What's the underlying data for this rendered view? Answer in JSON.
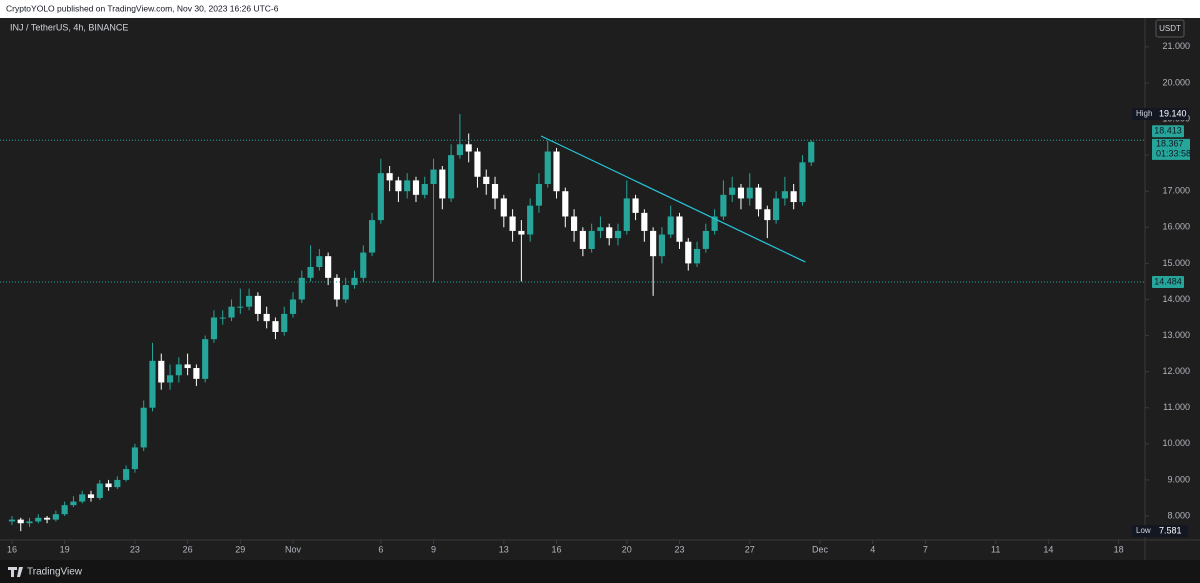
{
  "header": {
    "publisher": "CryptoYOLO published on TradingView.com, Nov 30, 2023 16:26 UTC-6"
  },
  "chart_data": {
    "type": "candlestick",
    "title": "INJ / TetherUS, 4h, BINANCE",
    "currency": "USDT",
    "x": [
      0,
      0.5,
      1,
      1.5,
      2,
      2.5,
      3,
      3.5,
      4,
      4.5,
      5,
      5.5,
      6,
      6.5,
      7,
      7.5,
      8,
      8.5,
      9,
      9.5,
      10,
      10.5,
      11,
      11.5,
      12,
      12.5,
      13,
      13.5,
      14,
      14.5,
      15,
      15.5,
      16,
      16.5,
      17,
      17.5,
      18,
      18.5,
      19,
      19.5,
      20,
      20.5,
      21,
      21.5,
      22,
      22.5,
      23,
      23.5,
      24,
      24.5,
      25,
      25.5,
      26,
      26.5,
      27,
      27.5,
      28,
      28.5,
      29,
      29.5,
      30,
      30.5,
      31,
      31.5,
      32,
      32.5,
      33,
      33.5,
      34,
      34.5,
      35,
      35.5,
      36,
      36.5,
      37,
      37.5,
      38,
      38.5,
      39,
      39.5,
      40,
      40.5,
      41,
      41.5,
      42,
      42.5,
      43,
      43.5,
      44,
      44.5,
      45,
      45.5
    ],
    "open": [
      7.85,
      7.9,
      7.8,
      7.85,
      7.95,
      7.9,
      8.05,
      8.3,
      8.4,
      8.6,
      8.5,
      8.9,
      8.8,
      9.0,
      9.3,
      9.9,
      11.0,
      12.3,
      11.7,
      11.9,
      12.2,
      12.1,
      11.8,
      12.9,
      13.5,
      13.5,
      13.8,
      13.8,
      14.1,
      13.6,
      13.4,
      13.1,
      13.6,
      14.0,
      14.6,
      14.9,
      15.2,
      14.6,
      14.0,
      14.4,
      14.6,
      15.3,
      16.2,
      17.5,
      17.3,
      17.0,
      17.3,
      16.9,
      17.2,
      17.6,
      16.8,
      18.0,
      18.3,
      18.1,
      17.4,
      17.2,
      16.8,
      16.3,
      15.9,
      15.8,
      16.6,
      17.2,
      18.1,
      17.0,
      16.3,
      15.9,
      15.4,
      15.9,
      16.0,
      15.7,
      15.9,
      16.8,
      16.4,
      15.9,
      15.2,
      15.8,
      16.3,
      15.6,
      15.0,
      15.4,
      15.9,
      16.3,
      16.9,
      17.1,
      16.8,
      17.1,
      16.5,
      16.2,
      16.8,
      17.0,
      16.7,
      17.8
    ],
    "high": [
      8.0,
      7.95,
      7.95,
      8.05,
      8.0,
      8.15,
      8.4,
      8.55,
      8.7,
      8.7,
      9.0,
      9.0,
      9.1,
      9.4,
      10.0,
      11.2,
      12.8,
      12.5,
      12.2,
      12.4,
      12.5,
      12.2,
      13.0,
      13.7,
      13.7,
      14.0,
      14.3,
      14.3,
      14.2,
      13.8,
      13.5,
      13.8,
      14.2,
      14.8,
      15.5,
      15.4,
      15.3,
      14.7,
      14.6,
      14.8,
      15.5,
      16.4,
      17.9,
      17.7,
      17.4,
      17.5,
      17.4,
      17.4,
      17.9,
      17.7,
      18.3,
      19.14,
      18.6,
      18.2,
      17.6,
      17.4,
      16.9,
      16.5,
      16.2,
      16.8,
      17.5,
      18.4,
      18.2,
      17.1,
      16.5,
      16.0,
      16.1,
      16.3,
      16.1,
      16.1,
      17.3,
      16.9,
      16.5,
      16.0,
      16.0,
      16.6,
      16.4,
      15.7,
      15.6,
      16.1,
      16.5,
      17.3,
      17.4,
      17.2,
      17.5,
      17.2,
      16.6,
      17.0,
      17.4,
      17.2,
      18.0,
      18.413
    ],
    "low": [
      7.75,
      7.581,
      7.7,
      7.8,
      7.8,
      7.85,
      8.0,
      8.25,
      8.35,
      8.4,
      8.45,
      8.7,
      8.75,
      8.95,
      9.2,
      9.8,
      10.9,
      11.5,
      11.5,
      11.7,
      11.9,
      11.6,
      11.7,
      12.8,
      13.3,
      13.4,
      13.6,
      13.7,
      13.4,
      13.2,
      12.9,
      13.0,
      13.5,
      13.9,
      14.5,
      14.8,
      14.4,
      13.8,
      13.9,
      14.3,
      14.5,
      15.2,
      16.1,
      17.0,
      16.7,
      16.8,
      16.7,
      16.8,
      14.48,
      16.5,
      16.7,
      17.9,
      17.8,
      17.1,
      16.9,
      16.5,
      16.0,
      15.6,
      14.5,
      15.6,
      16.4,
      17.1,
      16.8,
      16.0,
      15.6,
      15.2,
      15.3,
      15.7,
      15.5,
      15.5,
      15.8,
      16.2,
      15.6,
      14.1,
      15.0,
      15.7,
      15.4,
      14.8,
      14.9,
      15.3,
      15.8,
      16.2,
      16.7,
      16.5,
      16.6,
      16.3,
      15.7,
      16.1,
      16.6,
      16.5,
      16.6,
      17.7
    ],
    "close": [
      7.9,
      7.8,
      7.85,
      7.95,
      7.9,
      8.05,
      8.3,
      8.4,
      8.6,
      8.5,
      8.9,
      8.8,
      9.0,
      9.3,
      9.9,
      11.0,
      12.3,
      11.7,
      11.9,
      12.2,
      12.1,
      11.8,
      12.9,
      13.5,
      13.5,
      13.8,
      13.8,
      14.1,
      13.6,
      13.4,
      13.1,
      13.6,
      14.0,
      14.6,
      14.9,
      15.2,
      14.6,
      14.0,
      14.4,
      14.6,
      15.3,
      16.2,
      17.5,
      17.3,
      17.0,
      17.3,
      16.9,
      17.2,
      17.6,
      16.8,
      18.0,
      18.3,
      18.1,
      17.4,
      17.2,
      16.8,
      16.3,
      15.9,
      15.8,
      16.6,
      17.2,
      18.1,
      17.0,
      16.3,
      15.9,
      15.4,
      15.9,
      16.0,
      15.7,
      15.9,
      16.8,
      16.4,
      15.9,
      15.2,
      15.8,
      16.3,
      15.6,
      15.0,
      15.4,
      15.9,
      16.3,
      16.9,
      17.1,
      16.8,
      17.1,
      16.5,
      16.2,
      16.8,
      17.0,
      16.7,
      17.8,
      18.367
    ],
    "up_color": "#26a69a",
    "down_color": "#ffffff",
    "xlim": [
      -0.68,
      64.5
    ],
    "xticks": [
      {
        "value": 0,
        "label": "16"
      },
      {
        "value": 3,
        "label": "19"
      },
      {
        "value": 7,
        "label": "23"
      },
      {
        "value": 10,
        "label": "26"
      },
      {
        "value": 13,
        "label": "29"
      },
      {
        "value": 16,
        "label": "Nov"
      },
      {
        "value": 21,
        "label": "6"
      },
      {
        "value": 24,
        "label": "9"
      },
      {
        "value": 28,
        "label": "13"
      },
      {
        "value": 31,
        "label": "16"
      },
      {
        "value": 35,
        "label": "20"
      },
      {
        "value": 38,
        "label": "23"
      },
      {
        "value": 42,
        "label": "27"
      },
      {
        "value": 46,
        "label": "Dec"
      },
      {
        "value": 49,
        "label": "4"
      },
      {
        "value": 52,
        "label": "7"
      },
      {
        "value": 56,
        "label": "11"
      },
      {
        "value": 59,
        "label": "14"
      },
      {
        "value": 63,
        "label": "18"
      }
    ],
    "ylim": [
      7.335,
      21.8
    ],
    "yticks": [
      {
        "value": 8,
        "label": "8.000"
      },
      {
        "value": 9,
        "label": "9.000"
      },
      {
        "value": 10,
        "label": "10.000"
      },
      {
        "value": 11,
        "label": "11.000"
      },
      {
        "value": 12,
        "label": "12.000"
      },
      {
        "value": 13,
        "label": "13.000"
      },
      {
        "value": 14,
        "label": "14.000"
      },
      {
        "value": 15,
        "label": "15.000"
      },
      {
        "value": 16,
        "label": "16.000"
      },
      {
        "value": 17,
        "label": "17.000"
      },
      {
        "value": 18,
        "label": "18.000"
      },
      {
        "value": 19,
        "label": "19.000"
      },
      {
        "value": 20,
        "label": "20.000"
      },
      {
        "value": 21,
        "label": "21.000"
      }
    ],
    "levels": [
      {
        "value": 18.413,
        "label": "18.413"
      },
      {
        "value": 14.484,
        "label": "14.484"
      }
    ],
    "level_color": "#26a69a",
    "trendline": {
      "x": [
        30.12,
        45.16
      ],
      "y": [
        18.53,
        15.04
      ],
      "color": "#26c6da"
    },
    "last_price": {
      "value": 18.367,
      "label": "18.367",
      "countdown": "01:33:58"
    },
    "high_marker": {
      "text": "High",
      "value": 19.14,
      "label": "19.140"
    },
    "low_marker": {
      "text": "Low",
      "value": 7.581,
      "label": "7.581"
    }
  },
  "footer": {
    "brand": "TradingView"
  }
}
